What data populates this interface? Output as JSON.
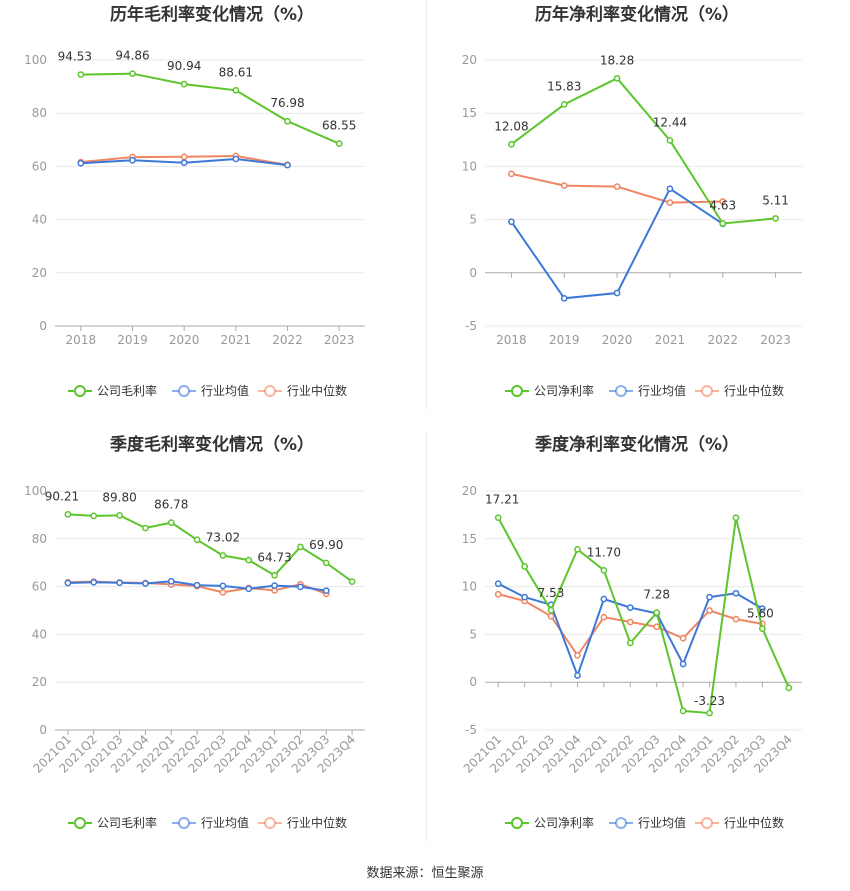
{
  "footer": {
    "source": "数据来源：恒生聚源"
  },
  "colors": {
    "company": "#5cc52c",
    "avg": "#3d78d8",
    "median": "#f08563",
    "grid": "#e8e8e8",
    "axis": "#999999"
  },
  "chart_data": [
    {
      "type": "line",
      "title": "历年毛利率变化情况（%）",
      "categories": [
        "2018",
        "2019",
        "2020",
        "2021",
        "2022",
        "2023"
      ],
      "ylim": [
        0,
        100
      ],
      "yticks": [
        0,
        20,
        40,
        60,
        80,
        100
      ],
      "grid": true,
      "legend": "bottom",
      "rotate_x": false,
      "series": [
        {
          "name": "公司毛利率",
          "role": "company",
          "values": [
            94.53,
            94.86,
            90.94,
            88.61,
            76.98,
            68.55
          ],
          "labels": [
            "94.53",
            "94.86",
            "90.94",
            "88.61",
            "76.98",
            "68.55"
          ]
        },
        {
          "name": "行业均值",
          "role": "avg",
          "values": [
            61.2,
            62.3,
            61.4,
            62.8,
            60.5,
            null
          ]
        },
        {
          "name": "行业中位数",
          "role": "median",
          "values": [
            61.6,
            63.5,
            63.6,
            63.9,
            60.6,
            null
          ]
        }
      ]
    },
    {
      "type": "line",
      "title": "历年净利率变化情况（%）",
      "categories": [
        "2018",
        "2019",
        "2020",
        "2021",
        "2022",
        "2023"
      ],
      "ylim": [
        -5,
        20
      ],
      "yticks": [
        -5,
        0,
        5,
        10,
        15,
        20
      ],
      "grid": true,
      "legend": "bottom",
      "rotate_x": false,
      "series": [
        {
          "name": "公司净利率",
          "role": "company",
          "values": [
            12.08,
            15.83,
            18.28,
            12.44,
            4.63,
            5.11
          ],
          "labels": [
            "12.08",
            "15.83",
            "18.28",
            "12.44",
            "4.63",
            "5.11"
          ]
        },
        {
          "name": "行业均值",
          "role": "avg",
          "values": [
            4.8,
            -2.4,
            -1.9,
            7.9,
            4.6,
            null
          ]
        },
        {
          "name": "行业中位数",
          "role": "median",
          "values": [
            9.3,
            8.2,
            8.1,
            6.6,
            6.7,
            null
          ]
        }
      ]
    },
    {
      "type": "line",
      "title": "季度毛利率变化情况（%）",
      "categories": [
        "2021Q1",
        "2021Q2",
        "2021Q3",
        "2021Q4",
        "2022Q1",
        "2022Q2",
        "2022Q3",
        "2022Q4",
        "2023Q1",
        "2023Q2",
        "2023Q3",
        "2023Q4"
      ],
      "ylim": [
        0,
        100
      ],
      "yticks": [
        0,
        20,
        40,
        60,
        80,
        100
      ],
      "grid": true,
      "legend": "bottom",
      "rotate_x": true,
      "series": [
        {
          "name": "公司毛利率",
          "role": "company",
          "values": [
            90.21,
            89.6,
            89.8,
            84.5,
            86.78,
            79.6,
            73.02,
            71.1,
            64.73,
            76.6,
            69.9,
            62.1
          ],
          "labels": [
            "90.21",
            "",
            "89.80",
            "",
            "86.78",
            "",
            "73.02",
            "",
            "64.73",
            "",
            "69.90",
            ""
          ]
        },
        {
          "name": "行业均值",
          "role": "avg",
          "values": [
            61.5,
            61.8,
            61.6,
            61.3,
            62.2,
            60.6,
            60.3,
            59.1,
            60.4,
            59.9,
            58.3,
            null
          ]
        },
        {
          "name": "行业中位数",
          "role": "median",
          "values": [
            61.8,
            62.1,
            61.7,
            61.5,
            60.9,
            60.2,
            57.6,
            59.4,
            58.4,
            61.0,
            57.0,
            null
          ]
        }
      ]
    },
    {
      "type": "line",
      "title": "季度净利率变化情况（%）",
      "categories": [
        "2021Q1",
        "2021Q2",
        "2021Q3",
        "2021Q4",
        "2022Q1",
        "2022Q2",
        "2022Q3",
        "2022Q4",
        "2023Q1",
        "2023Q2",
        "2023Q3",
        "2023Q4"
      ],
      "ylim": [
        -5,
        20
      ],
      "yticks": [
        -5,
        0,
        5,
        10,
        15,
        20
      ],
      "grid": true,
      "legend": "bottom",
      "rotate_x": true,
      "series": [
        {
          "name": "公司净利率",
          "role": "company",
          "values": [
            17.21,
            12.1,
            7.53,
            13.9,
            11.7,
            4.1,
            7.28,
            -3.0,
            -3.23,
            17.2,
            5.6,
            -0.6
          ],
          "labels": [
            "17.21",
            "",
            "7.53",
            "",
            "11.70",
            "",
            "7.28",
            "",
            "-3.23",
            "",
            "5.60",
            ""
          ]
        },
        {
          "name": "行业均值",
          "role": "avg",
          "values": [
            10.3,
            8.9,
            8.1,
            0.7,
            8.7,
            7.8,
            7.2,
            1.9,
            8.9,
            9.3,
            7.7,
            null
          ]
        },
        {
          "name": "行业中位数",
          "role": "median",
          "values": [
            9.2,
            8.5,
            6.9,
            2.8,
            6.8,
            6.3,
            5.8,
            4.6,
            7.5,
            6.6,
            6.1,
            null
          ]
        }
      ]
    }
  ]
}
